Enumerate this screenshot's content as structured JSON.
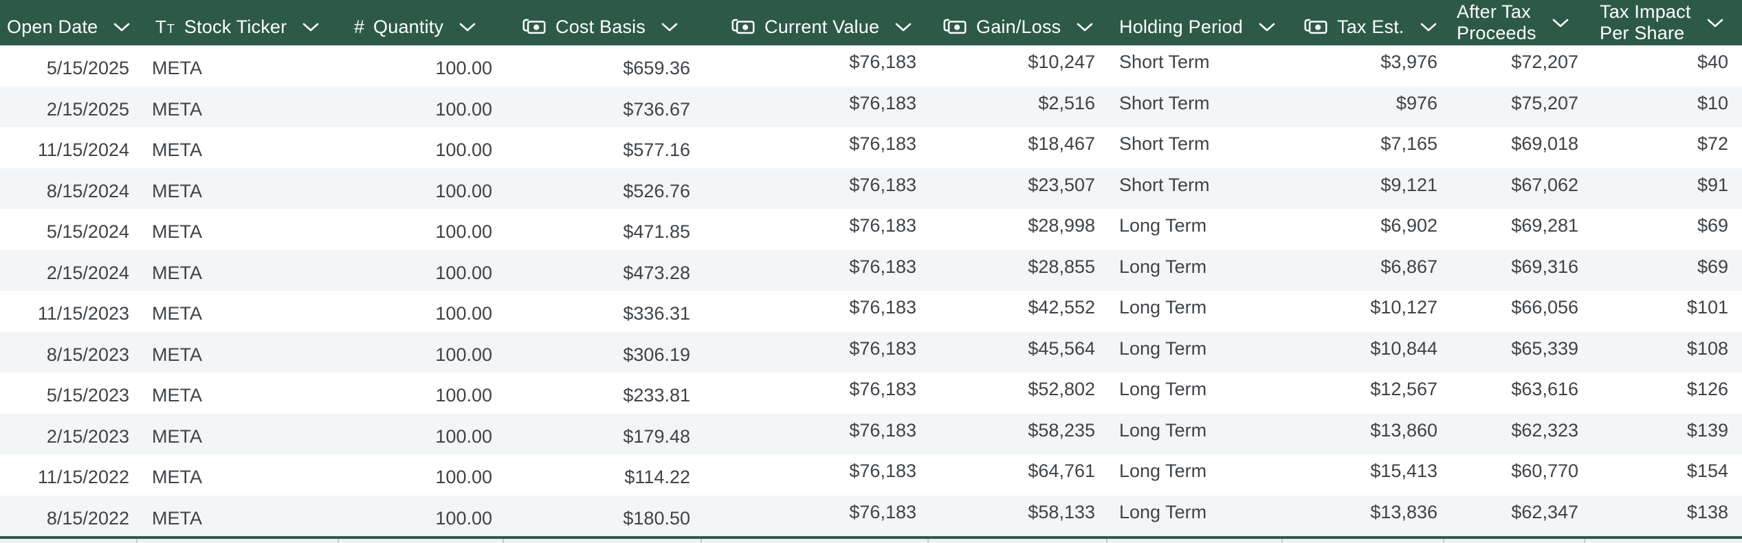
{
  "table": {
    "columns": [
      {
        "id": "open_date",
        "label": "Open Date",
        "lines": [
          "Open Date"
        ],
        "type_icon": null,
        "align": "right"
      },
      {
        "id": "stock_ticker",
        "label": "Stock Ticker",
        "lines": [
          "Stock Ticker"
        ],
        "type_icon": "text-type-icon",
        "align": "left"
      },
      {
        "id": "quantity",
        "label": "Quantity",
        "lines": [
          "Quantity"
        ],
        "type_icon": "number-type-icon",
        "align": "right"
      },
      {
        "id": "cost_basis",
        "label": "Cost Basis",
        "lines": [
          "Cost Basis"
        ],
        "type_icon": "money-type-icon",
        "align": "right"
      },
      {
        "id": "current_value",
        "label": "Current Value",
        "lines": [
          "Current Value"
        ],
        "type_icon": "money-type-icon",
        "align": "right"
      },
      {
        "id": "gain_loss",
        "label": "Gain/Loss",
        "lines": [
          "Gain/Loss"
        ],
        "type_icon": "money-type-icon",
        "align": "right"
      },
      {
        "id": "holding_period",
        "label": "Holding Period",
        "lines": [
          "Holding Period"
        ],
        "type_icon": null,
        "align": "left"
      },
      {
        "id": "tax_est",
        "label": "Tax Est.",
        "lines": [
          "Tax Est."
        ],
        "type_icon": "money-type-icon",
        "align": "right"
      },
      {
        "id": "after_tax_proceeds",
        "label": "After Tax Proceeds",
        "lines": [
          "After Tax",
          "Proceeds"
        ],
        "type_icon": null,
        "align": "right"
      },
      {
        "id": "tax_impact_per_share",
        "label": "Tax Impact Per Share",
        "lines": [
          "Tax Impact",
          "Per Share"
        ],
        "type_icon": null,
        "align": "right"
      }
    ],
    "rows": [
      {
        "open_date": "5/15/2025",
        "stock_ticker": "META",
        "quantity": "100.00",
        "cost_basis": "$659.36",
        "current_value": "$76,183",
        "gain_loss": "$10,247",
        "holding_period": "Short Term",
        "tax_est": "$3,976",
        "after_tax_proceeds": "$72,207",
        "tax_impact_per_share": "$40"
      },
      {
        "open_date": "2/15/2025",
        "stock_ticker": "META",
        "quantity": "100.00",
        "cost_basis": "$736.67",
        "current_value": "$76,183",
        "gain_loss": "$2,516",
        "holding_period": "Short Term",
        "tax_est": "$976",
        "after_tax_proceeds": "$75,207",
        "tax_impact_per_share": "$10"
      },
      {
        "open_date": "11/15/2024",
        "stock_ticker": "META",
        "quantity": "100.00",
        "cost_basis": "$577.16",
        "current_value": "$76,183",
        "gain_loss": "$18,467",
        "holding_period": "Short Term",
        "tax_est": "$7,165",
        "after_tax_proceeds": "$69,018",
        "tax_impact_per_share": "$72"
      },
      {
        "open_date": "8/15/2024",
        "stock_ticker": "META",
        "quantity": "100.00",
        "cost_basis": "$526.76",
        "current_value": "$76,183",
        "gain_loss": "$23,507",
        "holding_period": "Short Term",
        "tax_est": "$9,121",
        "after_tax_proceeds": "$67,062",
        "tax_impact_per_share": "$91"
      },
      {
        "open_date": "5/15/2024",
        "stock_ticker": "META",
        "quantity": "100.00",
        "cost_basis": "$471.85",
        "current_value": "$76,183",
        "gain_loss": "$28,998",
        "holding_period": "Long Term",
        "tax_est": "$6,902",
        "after_tax_proceeds": "$69,281",
        "tax_impact_per_share": "$69"
      },
      {
        "open_date": "2/15/2024",
        "stock_ticker": "META",
        "quantity": "100.00",
        "cost_basis": "$473.28",
        "current_value": "$76,183",
        "gain_loss": "$28,855",
        "holding_period": "Long Term",
        "tax_est": "$6,867",
        "after_tax_proceeds": "$69,316",
        "tax_impact_per_share": "$69"
      },
      {
        "open_date": "11/15/2023",
        "stock_ticker": "META",
        "quantity": "100.00",
        "cost_basis": "$336.31",
        "current_value": "$76,183",
        "gain_loss": "$42,552",
        "holding_period": "Long Term",
        "tax_est": "$10,127",
        "after_tax_proceeds": "$66,056",
        "tax_impact_per_share": "$101"
      },
      {
        "open_date": "8/15/2023",
        "stock_ticker": "META",
        "quantity": "100.00",
        "cost_basis": "$306.19",
        "current_value": "$76,183",
        "gain_loss": "$45,564",
        "holding_period": "Long Term",
        "tax_est": "$10,844",
        "after_tax_proceeds": "$65,339",
        "tax_impact_per_share": "$108"
      },
      {
        "open_date": "5/15/2023",
        "stock_ticker": "META",
        "quantity": "100.00",
        "cost_basis": "$233.81",
        "current_value": "$76,183",
        "gain_loss": "$52,802",
        "holding_period": "Long Term",
        "tax_est": "$12,567",
        "after_tax_proceeds": "$63,616",
        "tax_impact_per_share": "$126"
      },
      {
        "open_date": "2/15/2023",
        "stock_ticker": "META",
        "quantity": "100.00",
        "cost_basis": "$179.48",
        "current_value": "$76,183",
        "gain_loss": "$58,235",
        "holding_period": "Long Term",
        "tax_est": "$13,860",
        "after_tax_proceeds": "$62,323",
        "tax_impact_per_share": "$139"
      },
      {
        "open_date": "11/15/2022",
        "stock_ticker": "META",
        "quantity": "100.00",
        "cost_basis": "$114.22",
        "current_value": "$76,183",
        "gain_loss": "$64,761",
        "holding_period": "Long Term",
        "tax_est": "$15,413",
        "after_tax_proceeds": "$60,770",
        "tax_impact_per_share": "$154"
      },
      {
        "open_date": "8/15/2022",
        "stock_ticker": "META",
        "quantity": "100.00",
        "cost_basis": "$180.50",
        "current_value": "$76,183",
        "gain_loss": "$58,133",
        "holding_period": "Long Term",
        "tax_est": "$13,836",
        "after_tax_proceeds": "$62,347",
        "tax_impact_per_share": "$138"
      }
    ]
  },
  "colors": {
    "header_bg": "#2d5a48",
    "header_text": "#ffffff",
    "row_bg": "#ffffff",
    "row_alt_bg": "#f4f5f7",
    "cell_text": "#3f4347",
    "bottom_line": "#2d5a48"
  }
}
